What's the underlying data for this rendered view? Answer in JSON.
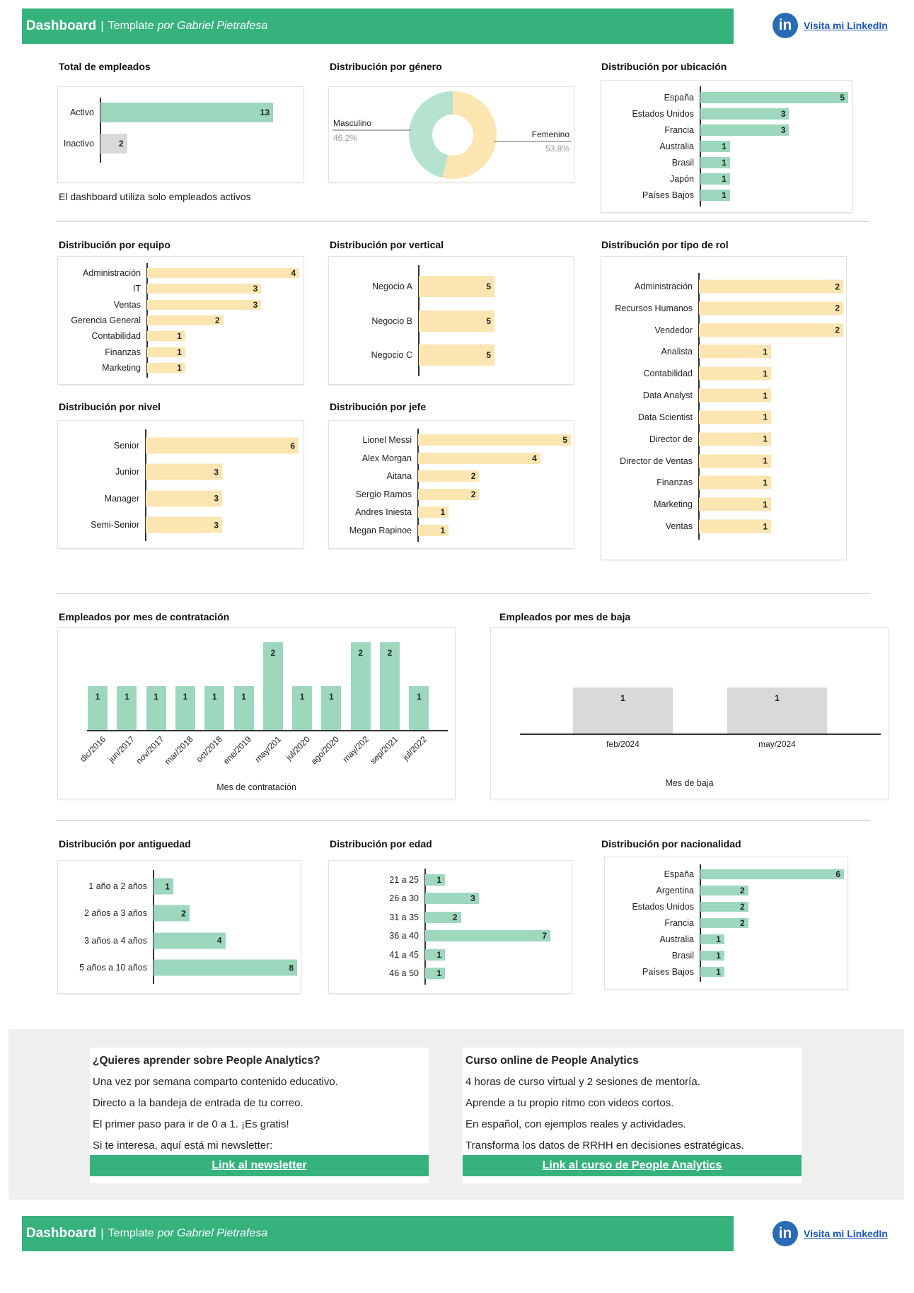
{
  "header": {
    "title": "Dashboard",
    "separator": "|",
    "subtitle_prefix": "Template",
    "subtitle_italic": "por Gabriel Pietrafesa",
    "linkedin_icon": "linkedin-icon",
    "linkedin_label": "Visita mi LinkedIn"
  },
  "colors": {
    "header": "#35b27e",
    "green_bar": "#9dd8be",
    "yellow_bar": "#fbe5b0",
    "grey_bar": "#d9d9d9",
    "link": "#1a56c4"
  },
  "note": "El dashboard utiliza solo empleados activos",
  "titles": {
    "total": "Total de empleados",
    "genero": "Distribución por género",
    "ubicacion": "Distribución por ubicación",
    "equipo": "Distribución por equipo",
    "vertical": "Distribución por vertical",
    "rol": "Distribución por tipo de rol",
    "nivel": "Distribución por nivel",
    "jefe": "Distribución por jefe",
    "contratacion": "Empleados por mes de contratación",
    "baja": "Empleados por mes de baja",
    "antiguedad": "Distribución por antiguedad",
    "edad": "Distribución por edad",
    "nacionalidad": "Distribución por nacionalidad"
  },
  "chart_data": [
    {
      "id": "total",
      "type": "bar",
      "orientation": "horizontal",
      "categories": [
        "Activo",
        "Inactivo"
      ],
      "values": [
        13,
        2
      ],
      "colors": [
        "#9dd8be",
        "#d9d9d9"
      ]
    },
    {
      "id": "genero",
      "type": "pie",
      "donut": true,
      "slices": [
        {
          "label": "Femenino",
          "value": 53.8,
          "pct": "53.8%",
          "color": "#fbe5b0"
        },
        {
          "label": "Masculino",
          "value": 46.2,
          "pct": "46.2%",
          "color": "#b5e3cf"
        }
      ]
    },
    {
      "id": "ubicacion",
      "type": "bar",
      "orientation": "horizontal",
      "categories": [
        "España",
        "Estados Unidos",
        "Francia",
        "Australia",
        "Brasil",
        "Japón",
        "Países Bajos"
      ],
      "values": [
        5,
        3,
        3,
        1,
        1,
        1,
        1
      ],
      "color": "#9dd8be"
    },
    {
      "id": "equipo",
      "type": "bar",
      "orientation": "horizontal",
      "categories": [
        "Administración",
        "IT",
        "Ventas",
        "Gerencia General",
        "Contabilidad",
        "Finanzas",
        "Marketing"
      ],
      "values": [
        4,
        3,
        3,
        2,
        1,
        1,
        1
      ],
      "color": "#fbe5b0"
    },
    {
      "id": "vertical",
      "type": "bar",
      "orientation": "horizontal",
      "categories": [
        "Negocio A",
        "Negocio B",
        "Negocio C"
      ],
      "values": [
        5,
        5,
        5
      ],
      "color": "#fbe5b0"
    },
    {
      "id": "rol",
      "type": "bar",
      "orientation": "horizontal",
      "categories": [
        "Administración",
        "Recursos Humanos",
        "Vendedor",
        "Analista",
        "Contabilidad",
        "Data Analyst",
        "Data Scientist",
        "Director de",
        "Director de Ventas",
        "Finanzas",
        "Marketing",
        "Ventas"
      ],
      "values": [
        2,
        2,
        2,
        1,
        1,
        1,
        1,
        1,
        1,
        1,
        1,
        1
      ],
      "color": "#fbe5b0"
    },
    {
      "id": "nivel",
      "type": "bar",
      "orientation": "horizontal",
      "categories": [
        "Senior",
        "Junior",
        "Manager",
        "Semi-Senior"
      ],
      "values": [
        6,
        3,
        3,
        3
      ],
      "color": "#fbe5b0"
    },
    {
      "id": "jefe",
      "type": "bar",
      "orientation": "horizontal",
      "categories": [
        "Lionel Messi",
        "Alex Morgan",
        "Aitana",
        "Sergio Ramos",
        "Andres Iniesta",
        "Megan Rapinoe"
      ],
      "values": [
        5,
        4,
        2,
        2,
        1,
        1
      ],
      "color": "#fbe5b0"
    },
    {
      "id": "contratacion",
      "type": "bar",
      "orientation": "vertical",
      "categories": [
        "dic/2016",
        "jun/2017",
        "nov/2017",
        "mar/2018",
        "oct/2018",
        "ene/2019",
        "may/201",
        "jul/2020",
        "ago/2020",
        "may/202",
        "sep/2021",
        "jul/2022"
      ],
      "values": [
        1,
        1,
        1,
        1,
        1,
        1,
        2,
        1,
        1,
        2,
        2,
        1
      ],
      "xlabel": "Mes de contratación",
      "color": "#9dd8be"
    },
    {
      "id": "baja",
      "type": "bar",
      "orientation": "vertical",
      "categories": [
        "feb/2024",
        "may/2024"
      ],
      "values": [
        1,
        1
      ],
      "xlabel": "Mes de baja",
      "color": "#d9d9d9"
    },
    {
      "id": "antiguedad",
      "type": "bar",
      "orientation": "horizontal",
      "categories": [
        "1 año a 2 años",
        "2 años a 3 años",
        "3 años a 4 años",
        "5 años a 10 años"
      ],
      "values": [
        1,
        2,
        4,
        8
      ],
      "color": "#9dd8be"
    },
    {
      "id": "edad",
      "type": "bar",
      "orientation": "horizontal",
      "categories": [
        "21 a 25",
        "26 a 30",
        "31 a 35",
        "36 a 40",
        "41 a 45",
        "46 a 50"
      ],
      "values": [
        1,
        3,
        2,
        7,
        1,
        1
      ],
      "color": "#9dd8be"
    },
    {
      "id": "nacionalidad",
      "type": "bar",
      "orientation": "horizontal",
      "categories": [
        "España",
        "Argentina",
        "Estados Unidos",
        "Francia",
        "Australia",
        "Brasil",
        "Países Bajos"
      ],
      "values": [
        6,
        2,
        2,
        2,
        1,
        1,
        1
      ],
      "color": "#9dd8be"
    }
  ],
  "newsletter": {
    "title": "¿Quieres aprender sobre People Analytics?",
    "lines": [
      "Una vez por semana comparto contenido educativo.",
      "Directo a la bandeja de entrada de tu correo.",
      "El primer paso para ir de 0 a 1. ¡Es gratis!",
      "Si te interesa, aquí está mi newsletter:"
    ],
    "button": "Link al newsletter"
  },
  "curso": {
    "title": "Curso online de People Analytics",
    "lines": [
      "4 horas de curso virtual y 2 sesiones de mentoría.",
      "Aprende a tu propio ritmo con videos cortos.",
      "En español, con ejemplos reales y actividades.",
      "Transforma los datos de RRHH en decisiones estratégicas."
    ],
    "button": "Link al curso de People Analytics"
  }
}
